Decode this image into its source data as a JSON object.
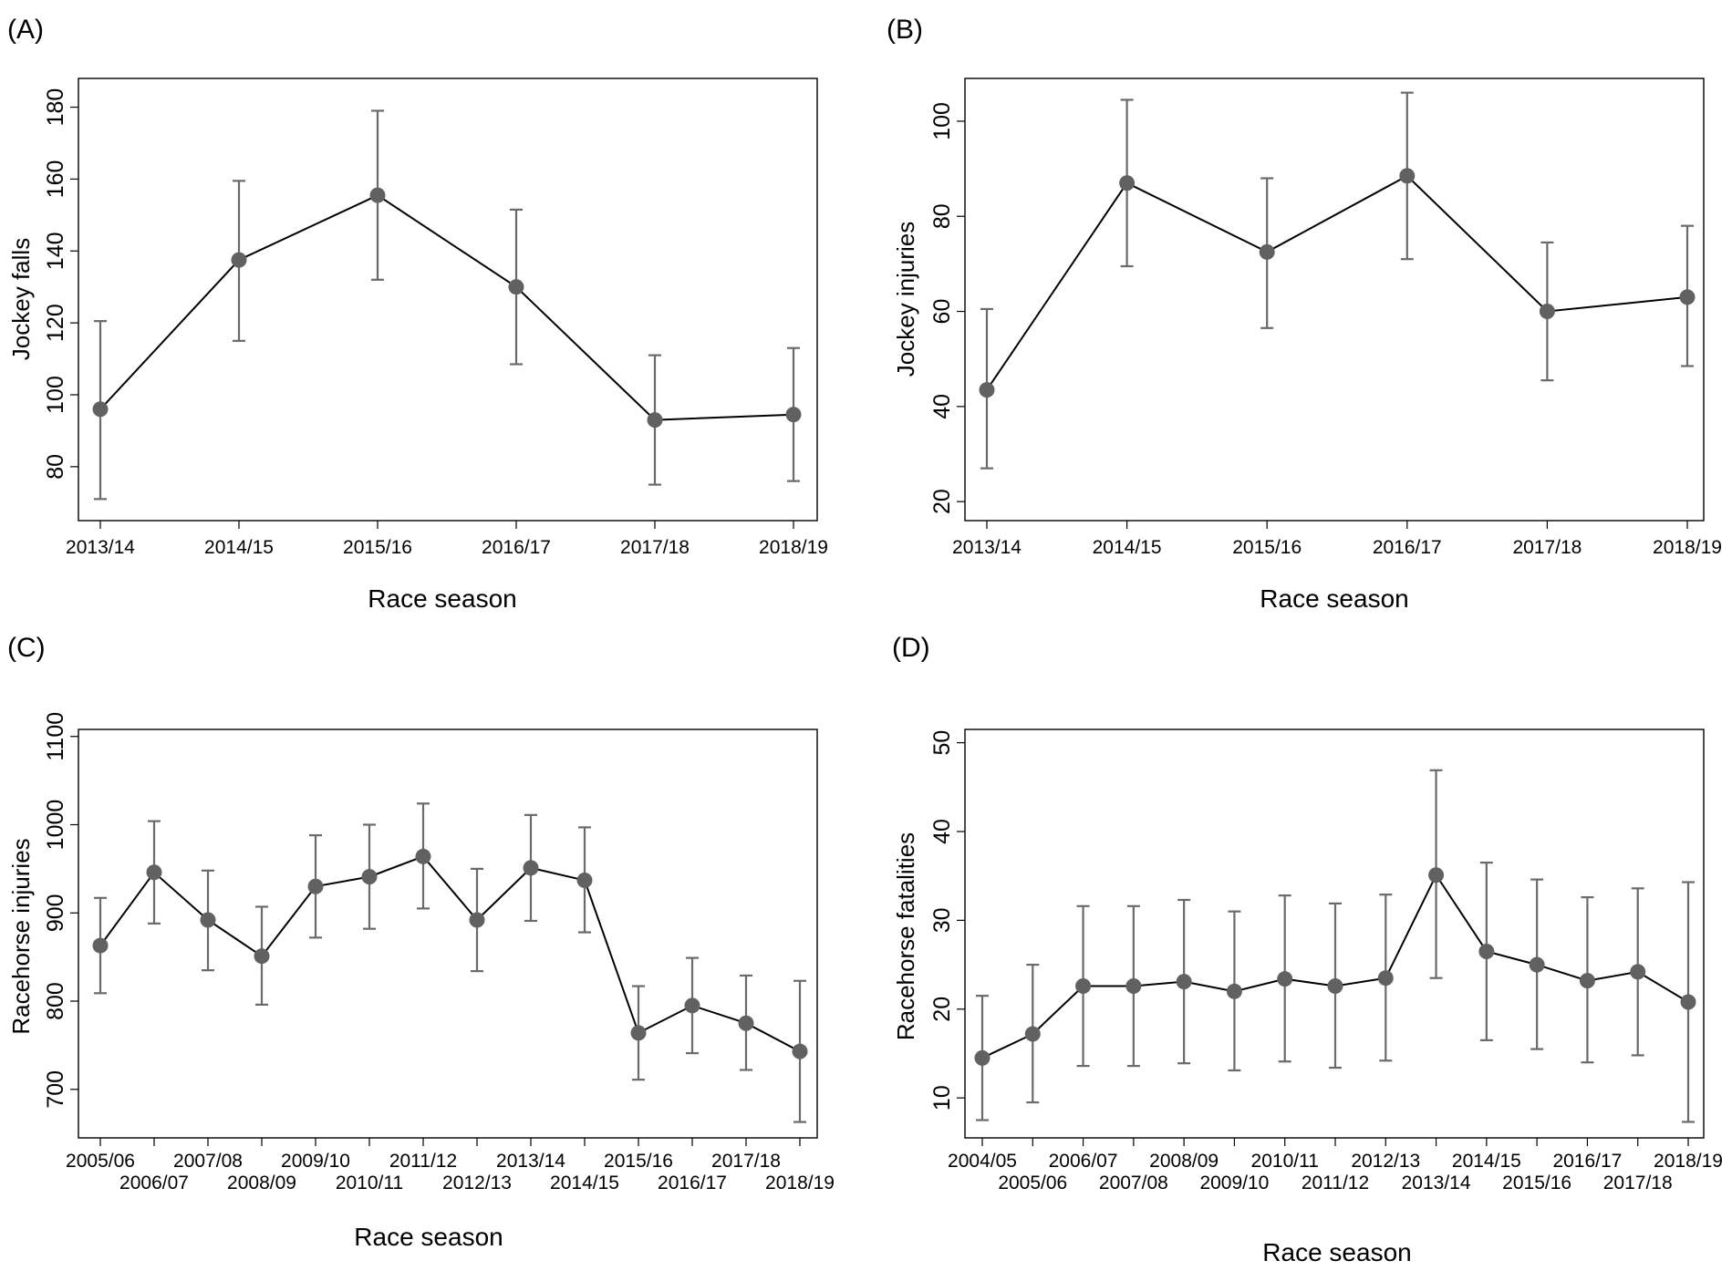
{
  "chart_data": [
    {
      "panel_label": "(A)",
      "type": "line",
      "xlabel": "Race season",
      "ylabel": "Jockey falls",
      "ylim": [
        65,
        188
      ],
      "yticks": [
        80,
        100,
        120,
        140,
        160,
        180
      ],
      "grid": false,
      "categories": [
        "2013/14",
        "2014/15",
        "2015/16",
        "2016/17",
        "2017/18",
        "2018/19"
      ],
      "series": [
        {
          "name": "Jockey falls",
          "values": [
            96,
            137.5,
            155.5,
            130,
            93,
            94.5
          ],
          "lower": [
            71,
            115,
            132,
            108.5,
            75,
            76
          ],
          "upper": [
            120.5,
            159.5,
            179,
            151.5,
            111,
            113
          ]
        }
      ]
    },
    {
      "panel_label": "(B)",
      "type": "line",
      "xlabel": "Race season",
      "ylabel": "Jockey injuries",
      "ylim": [
        16,
        109
      ],
      "yticks": [
        20,
        40,
        60,
        80,
        100
      ],
      "grid": false,
      "categories": [
        "2013/14",
        "2014/15",
        "2015/16",
        "2016/17",
        "2017/18",
        "2018/19"
      ],
      "series": [
        {
          "name": "Jockey injuries",
          "values": [
            43.5,
            87,
            72.5,
            88.5,
            60,
            63
          ],
          "lower": [
            27,
            69.5,
            56.5,
            71,
            45.5,
            48.5
          ],
          "upper": [
            60.5,
            104.5,
            88,
            106,
            74.5,
            78
          ]
        }
      ]
    },
    {
      "panel_label": "(C)",
      "type": "line",
      "xlabel": "Race season",
      "ylabel": "Racehorse injuries",
      "ylim": [
        645,
        1108
      ],
      "yticks": [
        700,
        800,
        900,
        1000,
        1100
      ],
      "grid": false,
      "categories": [
        "2005/06",
        "2006/07",
        "2007/08",
        "2008/09",
        "2009/10",
        "2010/11",
        "2011/12",
        "2012/13",
        "2013/14",
        "2014/15",
        "2015/16",
        "2016/17",
        "2017/18",
        "2018/19"
      ],
      "series": [
        {
          "name": "Racehorse injuries",
          "values": [
            863,
            946,
            892,
            851,
            930,
            941,
            964,
            892,
            951,
            937,
            764,
            795,
            775,
            743
          ],
          "lower": [
            809,
            888,
            835,
            796,
            872,
            882,
            905,
            834,
            891,
            878,
            711,
            741,
            722,
            663
          ],
          "upper": [
            917,
            1004,
            948,
            907,
            988,
            1000,
            1024,
            950,
            1011,
            997,
            817,
            849,
            829,
            823
          ]
        }
      ]
    },
    {
      "panel_label": "(D)",
      "type": "line",
      "xlabel": "Race season",
      "ylabel": "Racehorse fatalities",
      "ylim": [
        5.5,
        51.5
      ],
      "yticks": [
        10,
        20,
        30,
        40,
        50
      ],
      "grid": false,
      "categories": [
        "2004/05",
        "2005/06",
        "2006/07",
        "2007/08",
        "2008/09",
        "2009/10",
        "2010/11",
        "2011/12",
        "2012/13",
        "2013/14",
        "2014/15",
        "2015/16",
        "2016/17",
        "2017/18",
        "2018/19"
      ],
      "series": [
        {
          "name": "Racehorse fatalities",
          "values": [
            14.5,
            17.2,
            22.6,
            22.6,
            23.1,
            22,
            23.4,
            22.6,
            23.5,
            35.1,
            26.5,
            25,
            23.2,
            24.2,
            20.8
          ],
          "lower": [
            7.5,
            9.5,
            13.6,
            13.6,
            13.9,
            13.1,
            14.1,
            13.4,
            14.2,
            23.5,
            16.5,
            15.5,
            14,
            14.8,
            7.3
          ],
          "upper": [
            21.5,
            25,
            31.6,
            31.6,
            32.3,
            31,
            32.8,
            31.9,
            32.9,
            46.9,
            36.5,
            34.6,
            32.6,
            33.6,
            34.3
          ]
        }
      ]
    }
  ]
}
